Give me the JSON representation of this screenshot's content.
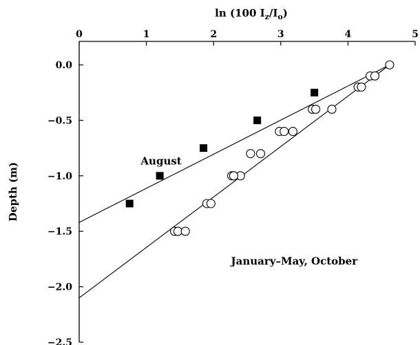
{
  "chart_data": {
    "type": "scatter",
    "title": "",
    "xlabel": "ln (100 I",
    "xlabel_sub1": "z",
    "xlabel_mid": "/I",
    "xlabel_sub2": "o",
    "xlabel_end": ")",
    "ylabel": "Depth (m)",
    "x_axis_position": "top",
    "xlim": [
      0,
      5
    ],
    "ylim": [
      -2.5,
      0.0
    ],
    "x_ticks": [
      "0",
      "1",
      "2",
      "3",
      "4",
      "5"
    ],
    "y_ticks": [
      "0.0",
      "−0.5",
      "−1.0",
      "−1.5",
      "−2.0",
      "−2.5"
    ],
    "grid": false,
    "series": [
      {
        "name": "August",
        "marker": "filled-square",
        "color": "#000000",
        "x": [
          0.75,
          1.2,
          1.85,
          2.65,
          3.5
        ],
        "y": [
          -1.25,
          -1.0,
          -0.75,
          -0.5,
          -0.25
        ]
      },
      {
        "name": "January–May, October",
        "marker": "open-circle",
        "color": "#000000",
        "x": [
          1.42,
          1.47,
          1.58,
          1.9,
          1.96,
          2.27,
          2.3,
          2.4,
          2.3,
          2.55,
          2.7,
          2.98,
          3.05,
          3.18,
          3.47,
          3.52,
          3.76,
          4.15,
          4.2,
          4.33,
          4.4,
          4.62
        ],
        "y": [
          -1.5,
          -1.5,
          -1.5,
          -1.25,
          -1.25,
          -1.0,
          -1.0,
          -1.0,
          -1.0,
          -0.8,
          -0.8,
          -0.6,
          -0.6,
          -0.6,
          -0.4,
          -0.4,
          -0.4,
          -0.2,
          -0.2,
          -0.1,
          -0.1,
          0.0
        ]
      }
    ],
    "fit_lines": [
      {
        "series": "August",
        "x": [
          0,
          4.62
        ],
        "y": [
          -1.42,
          0.0
        ]
      },
      {
        "series": "January–May, October",
        "x": [
          0,
          4.62
        ],
        "y": [
          -2.1,
          0.0
        ]
      }
    ],
    "annotations": [
      {
        "text": "August",
        "x": 1.22,
        "y": -0.9
      },
      {
        "text": "January–May, October",
        "x": 3.2,
        "y": -1.8
      }
    ]
  }
}
